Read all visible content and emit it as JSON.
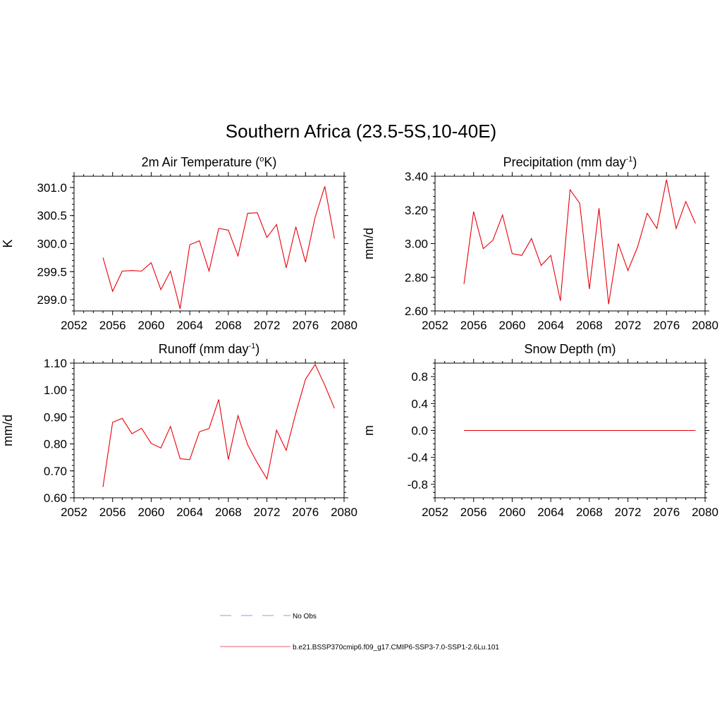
{
  "figure_title": "Southern Africa (23.5-5S,10-40E)",
  "chart_data": [
    {
      "type": "line",
      "title": "2m Air Temperature (",
      "title_sup": "o",
      "title_suffix": "K)",
      "title_sup2": "",
      "title_suffix2": "",
      "xlabel": "",
      "ylabel": "K",
      "xlim": [
        2052,
        2080
      ],
      "ylim": [
        298.8,
        301.2
      ],
      "xticks": [
        "2052",
        "2056",
        "2060",
        "2064",
        "2068",
        "2072",
        "2076",
        "2080"
      ],
      "yticks": [
        {
          "v": 299.0,
          "label": "299.0"
        },
        {
          "v": 299.5,
          "label": "299.5"
        },
        {
          "v": 300.0,
          "label": "300.0"
        },
        {
          "v": 300.5,
          "label": "300.5"
        },
        {
          "v": 301.0,
          "label": "301.0"
        }
      ],
      "yminor": 0.1,
      "series": [
        {
          "color": "#e8000b",
          "x": [
            2055,
            2056,
            2057,
            2058,
            2059,
            2060,
            2061,
            2062,
            2063,
            2064,
            2065,
            2066,
            2067,
            2068,
            2069,
            2070,
            2071,
            2072,
            2073,
            2074,
            2075,
            2076,
            2077,
            2078,
            2079
          ],
          "values": [
            299.75,
            299.15,
            299.51,
            299.52,
            299.51,
            299.66,
            299.18,
            299.51,
            298.84,
            299.98,
            300.05,
            299.51,
            300.27,
            300.24,
            299.78,
            300.54,
            300.55,
            300.11,
            300.34,
            299.57,
            300.3,
            299.67,
            300.47,
            301.02,
            300.09
          ]
        }
      ]
    },
    {
      "type": "line",
      "title": "Precipitation (mm day",
      "title_sup": "-1",
      "title_suffix": ")",
      "title_sup2": "",
      "title_suffix2": "",
      "xlabel": "",
      "ylabel": "mm/d",
      "xlim": [
        2052,
        2080
      ],
      "ylim": [
        2.6,
        3.4
      ],
      "xticks": [
        "2052",
        "2056",
        "2060",
        "2064",
        "2068",
        "2072",
        "2076",
        "2080"
      ],
      "yticks": [
        {
          "v": 2.6,
          "label": "2.60"
        },
        {
          "v": 2.8,
          "label": "2.80"
        },
        {
          "v": 3.0,
          "label": "3.00"
        },
        {
          "v": 3.2,
          "label": "3.20"
        },
        {
          "v": 3.4,
          "label": "3.40"
        }
      ],
      "yminor": 0.04,
      "series": [
        {
          "color": "#e8000b",
          "x": [
            2055,
            2056,
            2057,
            2058,
            2059,
            2060,
            2061,
            2062,
            2063,
            2064,
            2065,
            2066,
            2067,
            2068,
            2069,
            2070,
            2071,
            2072,
            2073,
            2074,
            2075,
            2076,
            2077,
            2078,
            2079
          ],
          "values": [
            2.76,
            3.19,
            2.97,
            3.02,
            3.17,
            2.94,
            2.93,
            3.03,
            2.87,
            2.93,
            2.66,
            3.32,
            3.24,
            2.73,
            3.21,
            2.64,
            3.0,
            2.84,
            2.98,
            3.18,
            3.09,
            3.38,
            3.09,
            3.25,
            3.12
          ]
        }
      ]
    },
    {
      "type": "line",
      "title": "Runoff (mm day",
      "title_sup": "-1",
      "title_suffix": ")",
      "title_sup2": "",
      "title_suffix2": "",
      "xlabel": "",
      "ylabel": "mm/d",
      "xlim": [
        2052,
        2080
      ],
      "ylim": [
        0.6,
        1.1
      ],
      "xticks": [
        "2052",
        "2056",
        "2060",
        "2064",
        "2068",
        "2072",
        "2076",
        "2080"
      ],
      "yticks": [
        {
          "v": 0.6,
          "label": "0.60"
        },
        {
          "v": 0.7,
          "label": "0.70"
        },
        {
          "v": 0.8,
          "label": "0.80"
        },
        {
          "v": 0.9,
          "label": "0.90"
        },
        {
          "v": 1.0,
          "label": "1.00"
        },
        {
          "v": 1.1,
          "label": "1.10"
        }
      ],
      "yminor": 0.02,
      "series": [
        {
          "color": "#e8000b",
          "x": [
            2055,
            2056,
            2057,
            2058,
            2059,
            2060,
            2061,
            2062,
            2063,
            2064,
            2065,
            2066,
            2067,
            2068,
            2069,
            2070,
            2071,
            2072,
            2073,
            2074,
            2075,
            2076,
            2077,
            2078,
            2079
          ],
          "values": [
            0.64,
            0.88,
            0.895,
            0.838,
            0.858,
            0.802,
            0.785,
            0.865,
            0.745,
            0.742,
            0.845,
            0.857,
            0.965,
            0.742,
            0.905,
            0.797,
            0.73,
            0.67,
            0.851,
            0.776,
            0.915,
            1.04,
            1.095,
            1.018,
            0.932
          ]
        }
      ]
    },
    {
      "type": "line",
      "title": "Snow Depth (m)",
      "title_sup": "",
      "title_suffix": "",
      "title_sup2": "",
      "title_suffix2": "",
      "xlabel": "",
      "ylabel": "m",
      "xlim": [
        2052,
        2080
      ],
      "ylim": [
        -1.0,
        1.0
      ],
      "xticks": [
        "2052",
        "2056",
        "2060",
        "2064",
        "2068",
        "2072",
        "2076",
        "2080"
      ],
      "yticks": [
        {
          "v": -0.8,
          "label": "-0.8"
        },
        {
          "v": -0.4,
          "label": "-0.4"
        },
        {
          "v": 0.0,
          "label": "0.0"
        },
        {
          "v": 0.4,
          "label": "0.4"
        },
        {
          "v": 0.8,
          "label": "0.8"
        }
      ],
      "yminor": 0.08,
      "series": [
        {
          "color": "#e8000b",
          "x": [
            2055,
            2056,
            2057,
            2058,
            2059,
            2060,
            2061,
            2062,
            2063,
            2064,
            2065,
            2066,
            2067,
            2068,
            2069,
            2070,
            2071,
            2072,
            2073,
            2074,
            2075,
            2076,
            2077,
            2078,
            2079
          ],
          "values": [
            0,
            0,
            0,
            0,
            0,
            0,
            0,
            0,
            0,
            0,
            0,
            0,
            0,
            0,
            0,
            0,
            0,
            0,
            0,
            0,
            0,
            0,
            0,
            0,
            0
          ]
        }
      ]
    }
  ],
  "legend": [
    {
      "label": "No Obs",
      "color": "#aaaaee",
      "style": "dashed"
    },
    {
      "label": "b.e21.BSSP370cmip6.f09_g17.CMIP6-SSP3-7.0-SSP1-2.6Lu.101",
      "color": "#f08080",
      "style": "solid"
    }
  ]
}
